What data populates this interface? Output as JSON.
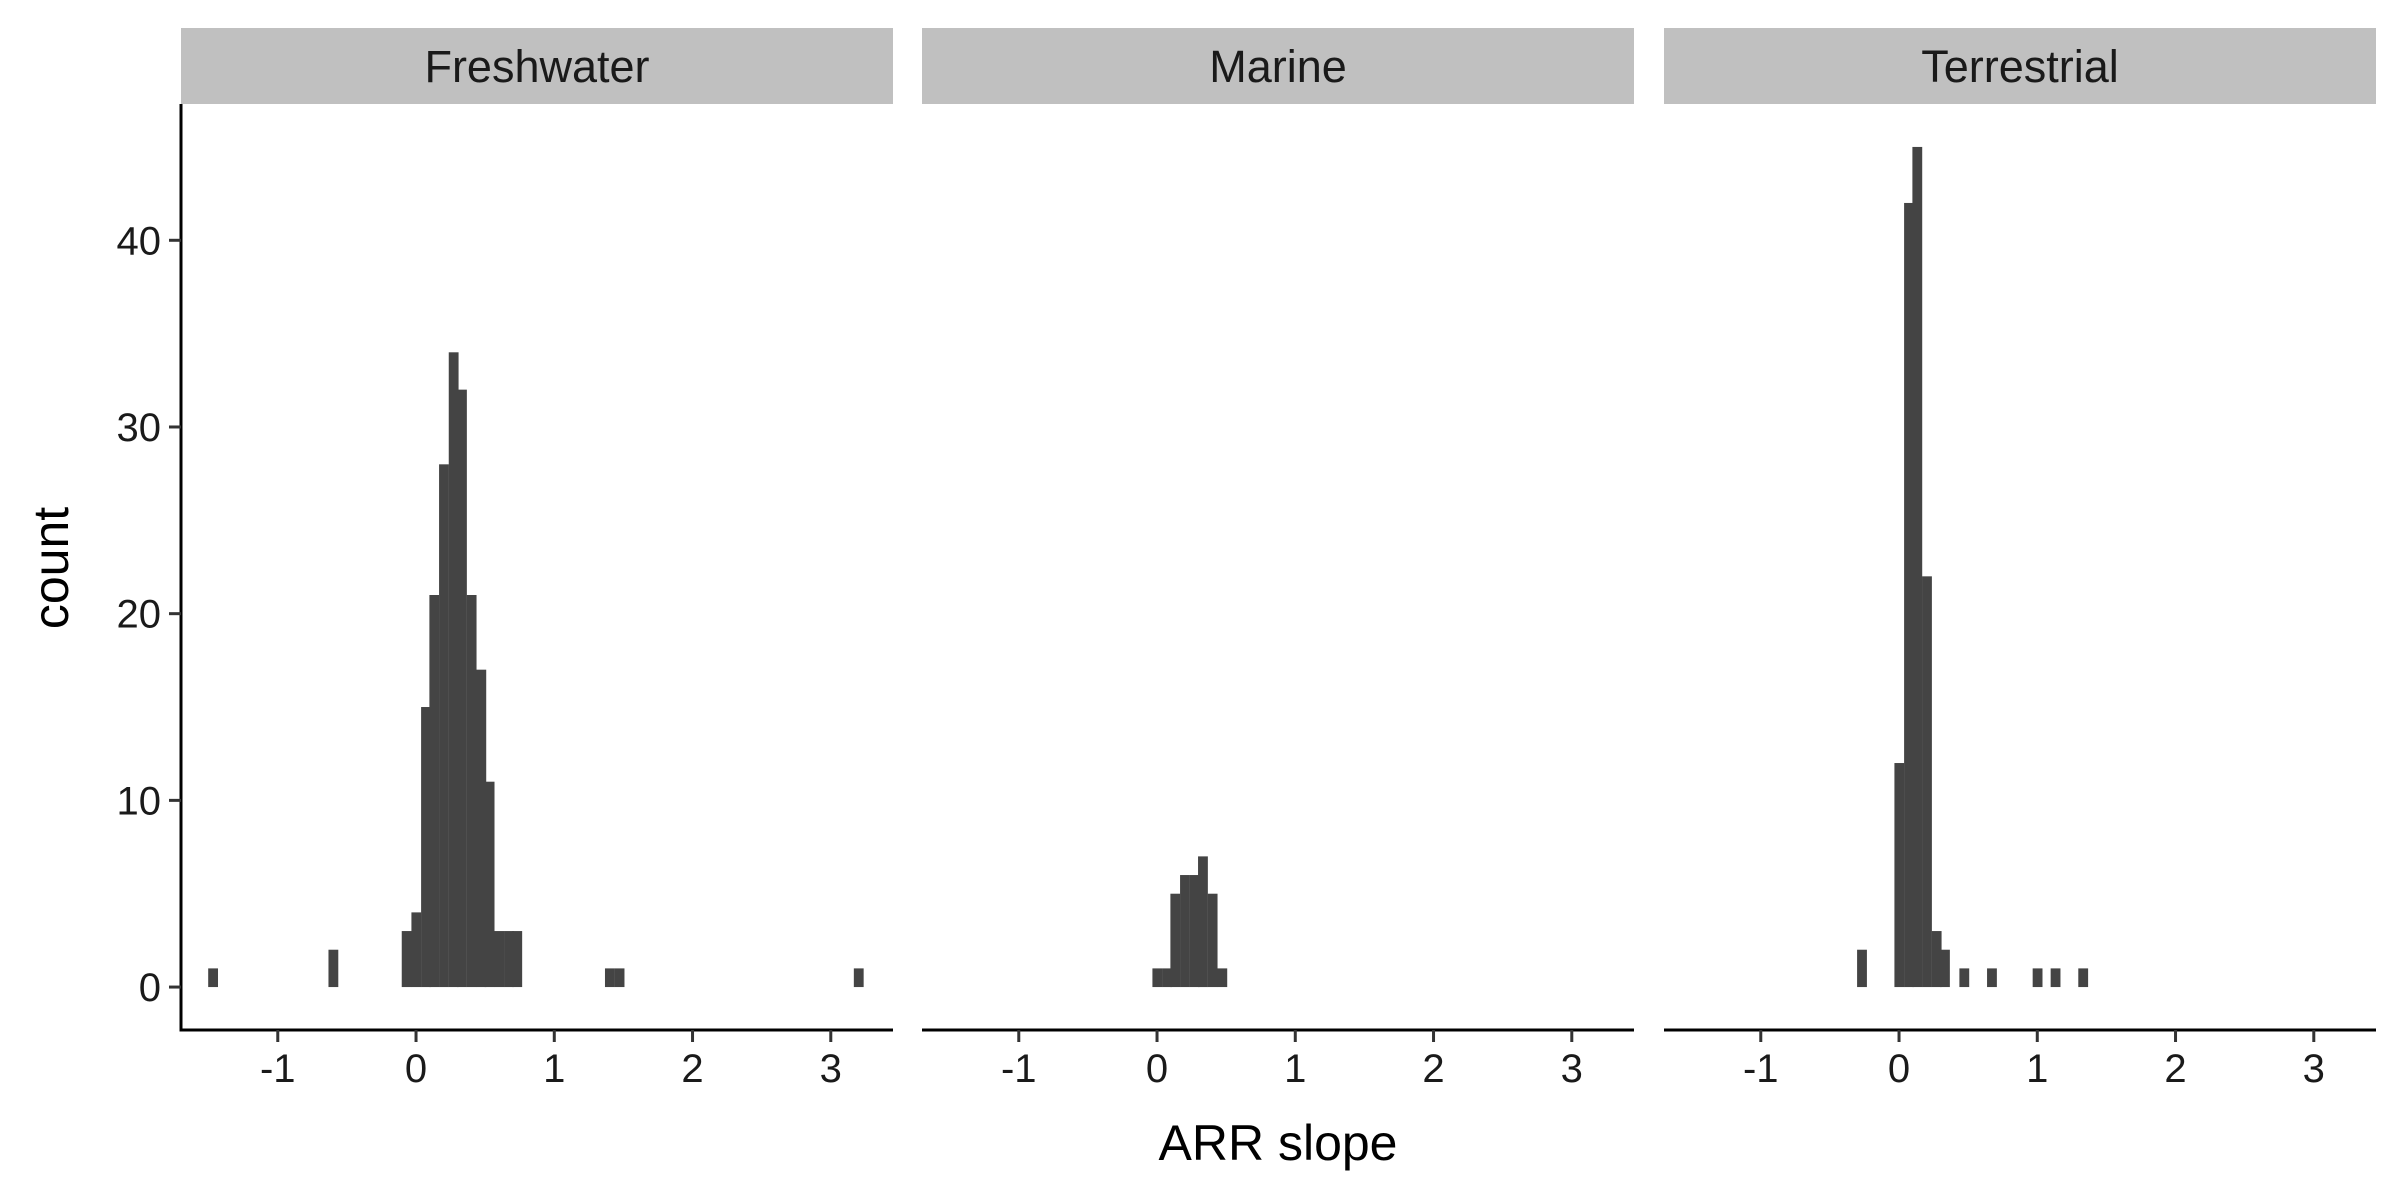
{
  "chart_data": {
    "type": "bar",
    "subtype": "faceted-histogram",
    "bar_color": "#444444",
    "strip_color": "#c0c0c0",
    "xlabel": "ARR slope",
    "ylabel": "count",
    "xlim": [
      -1.7,
      3.45
    ],
    "ylim": [
      -2.3,
      47.3
    ],
    "x_ticks": [
      -1,
      0,
      1,
      2,
      3
    ],
    "y_ticks": [
      0,
      10,
      20,
      30,
      40
    ],
    "bin_width": 0.0667,
    "panels": [
      {
        "name": "Freshwater",
        "bins": [
          {
            "x": -1.47,
            "count": 1
          },
          {
            "x": -0.6,
            "count": 2
          },
          {
            "x": -0.07,
            "count": 3
          },
          {
            "x": 0.0,
            "count": 4
          },
          {
            "x": 0.07,
            "count": 15
          },
          {
            "x": 0.13,
            "count": 21
          },
          {
            "x": 0.2,
            "count": 28
          },
          {
            "x": 0.27,
            "count": 34
          },
          {
            "x": 0.33,
            "count": 32
          },
          {
            "x": 0.4,
            "count": 21
          },
          {
            "x": 0.47,
            "count": 17
          },
          {
            "x": 0.53,
            "count": 11
          },
          {
            "x": 0.6,
            "count": 3
          },
          {
            "x": 0.67,
            "count": 3
          },
          {
            "x": 0.73,
            "count": 3
          },
          {
            "x": 1.4,
            "count": 1
          },
          {
            "x": 1.47,
            "count": 1
          },
          {
            "x": 3.2,
            "count": 1
          }
        ]
      },
      {
        "name": "Marine",
        "bins": [
          {
            "x": 0.0,
            "count": 1
          },
          {
            "x": 0.07,
            "count": 1
          },
          {
            "x": 0.13,
            "count": 5
          },
          {
            "x": 0.2,
            "count": 6
          },
          {
            "x": 0.27,
            "count": 6
          },
          {
            "x": 0.33,
            "count": 7
          },
          {
            "x": 0.4,
            "count": 5
          },
          {
            "x": 0.47,
            "count": 1
          }
        ]
      },
      {
        "name": "Terrestrial",
        "bins": [
          {
            "x": -0.27,
            "count": 2
          },
          {
            "x": 0.0,
            "count": 12
          },
          {
            "x": 0.07,
            "count": 42
          },
          {
            "x": 0.13,
            "count": 45
          },
          {
            "x": 0.2,
            "count": 22
          },
          {
            "x": 0.27,
            "count": 3
          },
          {
            "x": 0.33,
            "count": 2
          },
          {
            "x": 0.47,
            "count": 1
          },
          {
            "x": 0.67,
            "count": 1
          },
          {
            "x": 1.0,
            "count": 1
          },
          {
            "x": 1.13,
            "count": 1
          },
          {
            "x": 1.33,
            "count": 1
          }
        ]
      }
    ]
  }
}
